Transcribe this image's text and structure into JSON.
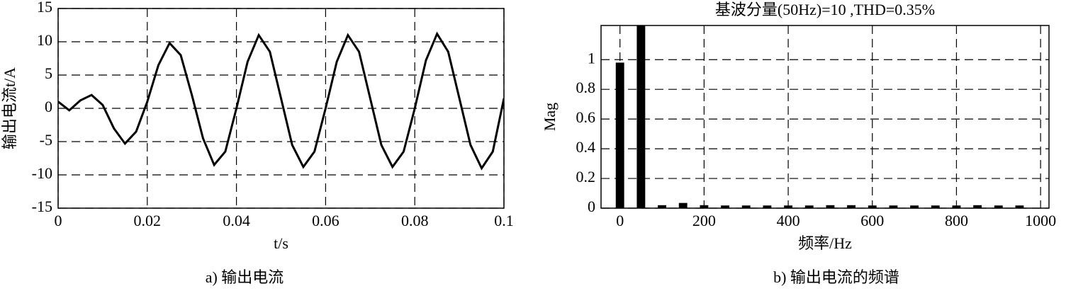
{
  "chart_data": [
    {
      "type": "line",
      "caption": "a) 输出电流",
      "xlabel": "t/s",
      "ylabel": "输出电流t/A",
      "x": [
        0,
        0.0025,
        0.005,
        0.0075,
        0.01,
        0.0125,
        0.015,
        0.0175,
        0.02,
        0.0225,
        0.025,
        0.0275,
        0.03,
        0.0325,
        0.035,
        0.0375,
        0.04,
        0.0425,
        0.045,
        0.0475,
        0.05,
        0.0525,
        0.055,
        0.0575,
        0.06,
        0.0625,
        0.065,
        0.0675,
        0.07,
        0.0725,
        0.075,
        0.0775,
        0.08,
        0.0825,
        0.085,
        0.0875,
        0.09,
        0.0925,
        0.095,
        0.0975,
        0.1
      ],
      "values": [
        1,
        -0.3,
        1.2,
        2,
        0.5,
        -3,
        -5.3,
        -3.5,
        1,
        6.5,
        9.8,
        8,
        2,
        -4.5,
        -8.5,
        -6.5,
        0,
        7,
        11,
        8.5,
        1.5,
        -5.5,
        -8.8,
        -6.5,
        0,
        7,
        11,
        8.5,
        1.5,
        -5.5,
        -8.8,
        -6.5,
        0,
        7.2,
        11.2,
        8.5,
        1.5,
        -5.5,
        -9,
        -6.5,
        1.5
      ],
      "color": "#000000",
      "xlim": [
        0,
        0.1
      ],
      "xticks": [
        0,
        0.02,
        0.04,
        0.06,
        0.08,
        0.1
      ],
      "ylim": [
        -15,
        15
      ],
      "yticks": [
        -15,
        -10,
        -5,
        0,
        5,
        10,
        15
      ],
      "grid": true
    },
    {
      "type": "bar",
      "title": "基波分量(50Hz)=10 ,THD=0.35%",
      "caption": "b) 输出电流的频谱",
      "xlabel": "频率/Hz",
      "ylabel": "Mag",
      "x": [
        0,
        50,
        100,
        150,
        200,
        250,
        300,
        350,
        400,
        450,
        500,
        550,
        600,
        650,
        700,
        750,
        800,
        850,
        900,
        950
      ],
      "values": [
        0.98,
        1.23,
        0.02,
        0.035,
        0.02,
        0.018,
        0.018,
        0.018,
        0.018,
        0.018,
        0.02,
        0.02,
        0.018,
        0.018,
        0.018,
        0.018,
        0.018,
        0.02,
        0.018,
        0.018
      ],
      "color": "#000000",
      "xlim": [
        -45,
        1020
      ],
      "xticks": [
        0,
        200,
        400,
        600,
        800,
        1000
      ],
      "ylim": [
        0,
        1.23
      ],
      "yticks": [
        0,
        0.2,
        0.4,
        0.6,
        0.8,
        1
      ],
      "grid": true
    }
  ]
}
